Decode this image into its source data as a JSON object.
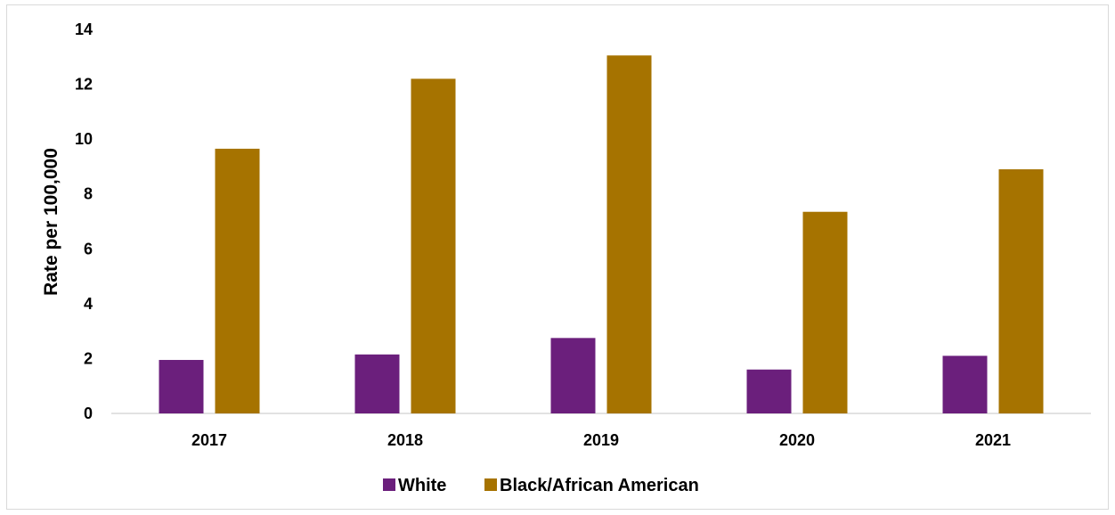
{
  "chart_data": {
    "type": "bar",
    "title": "",
    "xlabel": "",
    "ylabel": "Rate per 100,000",
    "ylim": [
      0,
      14
    ],
    "yticks": [
      0,
      2,
      4,
      6,
      8,
      10,
      12,
      14
    ],
    "categories": [
      "2017",
      "2018",
      "2019",
      "2020",
      "2021"
    ],
    "series": [
      {
        "name": "White",
        "color": "#6b1f7c",
        "values": [
          1.95,
          2.15,
          2.75,
          1.6,
          2.1
        ]
      },
      {
        "name": "Black/African American",
        "color": "#a67300",
        "values": [
          9.65,
          12.2,
          13.05,
          7.35,
          8.9
        ]
      }
    ],
    "grid": false,
    "legend_position": "bottom"
  }
}
